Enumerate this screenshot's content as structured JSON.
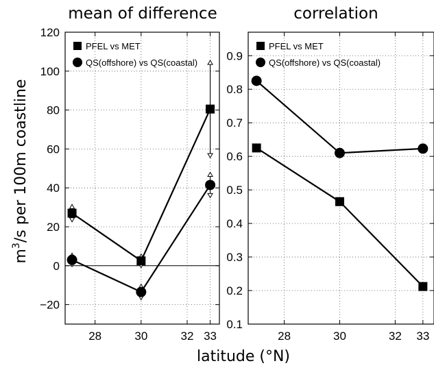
{
  "ylabel_main": "m",
  "ylabel_sup": "3",
  "ylabel_rest": "/s per 100m coastline",
  "xlabel": "latitude (°N)",
  "chart_data": [
    {
      "type": "line",
      "title": "mean of difference",
      "xlim": [
        26.7,
        33.4
      ],
      "ylim": [
        -30,
        120
      ],
      "xticks": [
        28,
        30,
        32,
        33
      ],
      "yticks": [
        -20,
        0,
        20,
        40,
        60,
        80,
        100,
        120
      ],
      "zero_line": true,
      "grid": true,
      "legend_position": "top-left",
      "series": [
        {
          "name": "PFEL vs MET",
          "marker": "square",
          "x": [
            27,
            30,
            33
          ],
          "y": [
            27,
            2.5,
            80.5
          ],
          "err": [
            4.5,
            3.5,
            25
          ]
        },
        {
          "name": "QS(offshore) vs QS(coastal)",
          "marker": "circle",
          "x": [
            27,
            30,
            33
          ],
          "y": [
            3,
            -13.5,
            41.5
          ],
          "err": [
            3.5,
            4,
            6.5
          ]
        }
      ]
    },
    {
      "type": "line",
      "title": "correlation",
      "xlim": [
        26.7,
        33.4
      ],
      "ylim": [
        0.1,
        0.97
      ],
      "xticks": [
        28,
        30,
        32,
        33
      ],
      "yticks": [
        0.1,
        0.2,
        0.3,
        0.4,
        0.5,
        0.6,
        0.7,
        0.8,
        0.9
      ],
      "zero_line": false,
      "grid": true,
      "legend_position": "top-left",
      "series": [
        {
          "name": "PFEL vs MET",
          "marker": "square",
          "x": [
            27,
            30,
            33
          ],
          "y": [
            0.625,
            0.465,
            0.212
          ]
        },
        {
          "name": "QS(offshore) vs QS(coastal)",
          "marker": "circle",
          "x": [
            27,
            30,
            33
          ],
          "y": [
            0.825,
            0.61,
            0.623
          ]
        }
      ]
    }
  ]
}
